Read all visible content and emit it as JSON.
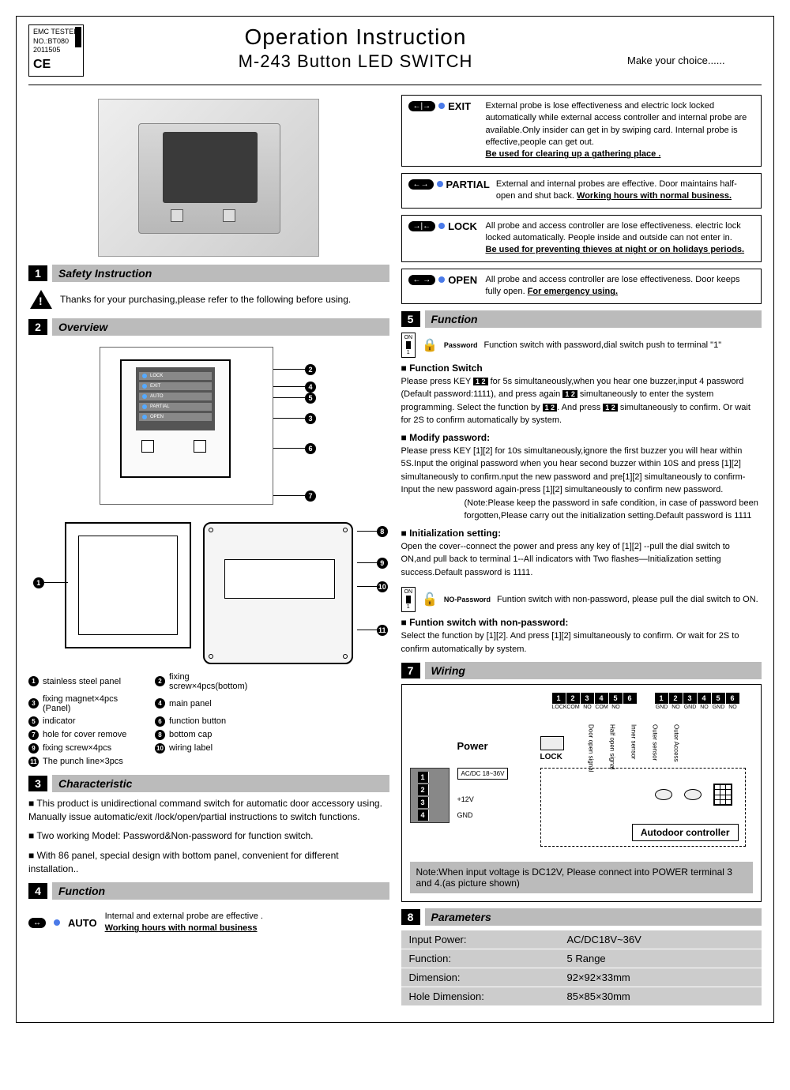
{
  "emc": {
    "line1": "EMC TESTED",
    "line2": "NO.:BT080",
    "line3": "2011505",
    "ce": "CE"
  },
  "title": {
    "line1": "Operation Instruction",
    "line2": "M-243 Button LED SWITCH",
    "tagline": "Make your choice......"
  },
  "sections": {
    "s1": {
      "num": "1",
      "title": "Safety Instruction"
    },
    "s2": {
      "num": "2",
      "title": "Overview"
    },
    "s3": {
      "num": "3",
      "title": "Characteristic"
    },
    "s4": {
      "num": "4",
      "title": "Function"
    },
    "s5": {
      "num": "5",
      "title": "Function"
    },
    "s7": {
      "num": "7",
      "title": "Wiring"
    },
    "s8": {
      "num": "8",
      "title": "Parameters"
    }
  },
  "safety_text": "Thanks for your purchasing,please refer to the following before using.",
  "modes": {
    "exit": {
      "label": "EXIT",
      "text": "External probe is lose effectiveness and electric lock locked automatically while external access controller and internal probe are available.Only insider can get in by swiping card. Internal probe is effective,people can get out.",
      "bold": "Be used for clearing up a gathering place ."
    },
    "partial": {
      "label": "PARTIAL",
      "text": "External and internal probes are effective. Door maintains half-open and shut back. ",
      "bold": "Working hours with normal business."
    },
    "lock": {
      "label": "LOCK",
      "text": "All probe and access controller are lose effectiveness. electric lock locked automatically. People inside and outside can not enter in.",
      "bold": "Be used for preventing thieves at night or on holidays periods."
    },
    "open": {
      "label": "OPEN",
      "text": "All probe and access controller are lose effectiveness. Door keeps fully open. ",
      "bold": "For emergency using."
    },
    "auto": {
      "label": "AUTO",
      "text": "Internal and external probe are effective .",
      "bold": "Working hours with normal business"
    }
  },
  "func": {
    "pwd_label": "Password",
    "pwd_text": "Function switch with password,dial switch push to terminal \"1\"",
    "switch_head": "Function Switch",
    "switch_body1": "Please press KEY ",
    "switch_body2": " for 5s simultaneously,when you hear one buzzer,input 4 password (Default password:1111), and press again ",
    "switch_body3": " simultaneously to enter the system programming. Select the function by ",
    "switch_body4": ". And press ",
    "switch_body5": " simultaneously to confirm. Or wait for 2S to confirm automatically by system.",
    "modify_head": "Modify password:",
    "modify_body": "Please press KEY [1][2] for 10s simultaneously,ignore the first buzzer you will hear within 5S.Input the original password when you hear second buzzer within 10S and press [1][2] simultaneously to confirm.nput the new password and pre[1][2] simultaneously to confirm-Input the new password again-press [1][2] simultaneously to confirm new password.",
    "modify_note": "(Note:Please keep the password in safe condition, in case of password been forgotten,Please carry out the initialization setting.Default password is 1111",
    "init_head": "Initialization setting:",
    "init_body": "Open the cover--connect the power and press any key of [1][2] --pull the dial switch to ON,and pull back to terminal 1--All indicators with Two flashes—Initialization setting success.Default password is 1111.",
    "nopwd_label": "NO-Password",
    "nopwd_text": "Funtion switch with non-password, please pull the dial switch to ON.",
    "nopwd_head": "Funtion switch with non-password:",
    "nopwd_body": "Select the function by [1][2]. And press [1][2] simultaneously to confirm. Or wait for 2S to confirm automatically by system."
  },
  "overview_rows": [
    "LOCK",
    "EXIT",
    "AUTO",
    "PARTIAL",
    "OPEN"
  ],
  "legend": [
    {
      "n": "1",
      "t": "stainless steel panel"
    },
    {
      "n": "2",
      "t": "fixing screw×4pcs(bottom)"
    },
    {
      "n": "3",
      "t": "fixing magnet×4pcs (Panel)"
    },
    {
      "n": "4",
      "t": "main panel"
    },
    {
      "n": "5",
      "t": "indicator"
    },
    {
      "n": "6",
      "t": "function button"
    },
    {
      "n": "7",
      "t": "hole for cover remove"
    },
    {
      "n": "8",
      "t": "bottom cap"
    },
    {
      "n": "9",
      "t": "fixing screw×4pcs"
    },
    {
      "n": "10",
      "t": "wiring label"
    },
    {
      "n": "11",
      "t": "The punch line×3pcs"
    }
  ],
  "characteristics": [
    "This product is unidirectional command switch for automatic door accessory using. Manually issue automatic/exit /lock/open/partial instructions to switch functions.",
    "Two working Model: Password&Non-password for function switch.",
    "With 86 panel, special design with bottom panel, convenient for different installation.."
  ],
  "wiring": {
    "power_label": "Power",
    "lock_label": "LOCK",
    "acdc": "AC/DC 18~36V",
    "v12": "+12V",
    "gnd": "GND",
    "controller": "Autodoor controller",
    "sig1": "Door open signal",
    "sig2": "Half open signal",
    "sig3": "Inner sensor",
    "sig4": "Outer sensor",
    "sig5": "Outer Access",
    "top_labels_a": [
      "LOCK",
      "COM",
      "NO",
      "COM",
      "NO"
    ],
    "top_labels_b": [
      "GND",
      "NO",
      "GND",
      "NO",
      "GND",
      "NO"
    ],
    "note": "Note:When input voltage is DC12V, Please connect into POWER terminal 3 and 4.(as picture shown)"
  },
  "params": [
    {
      "k": "Input Power:",
      "v": "AC/DC18V~36V"
    },
    {
      "k": "Function:",
      "v": "5 Range"
    },
    {
      "k": "Dimension:",
      "v": "92×92×33mm"
    },
    {
      "k": "Hole Dimension:",
      "v": "85×85×30mm"
    }
  ]
}
